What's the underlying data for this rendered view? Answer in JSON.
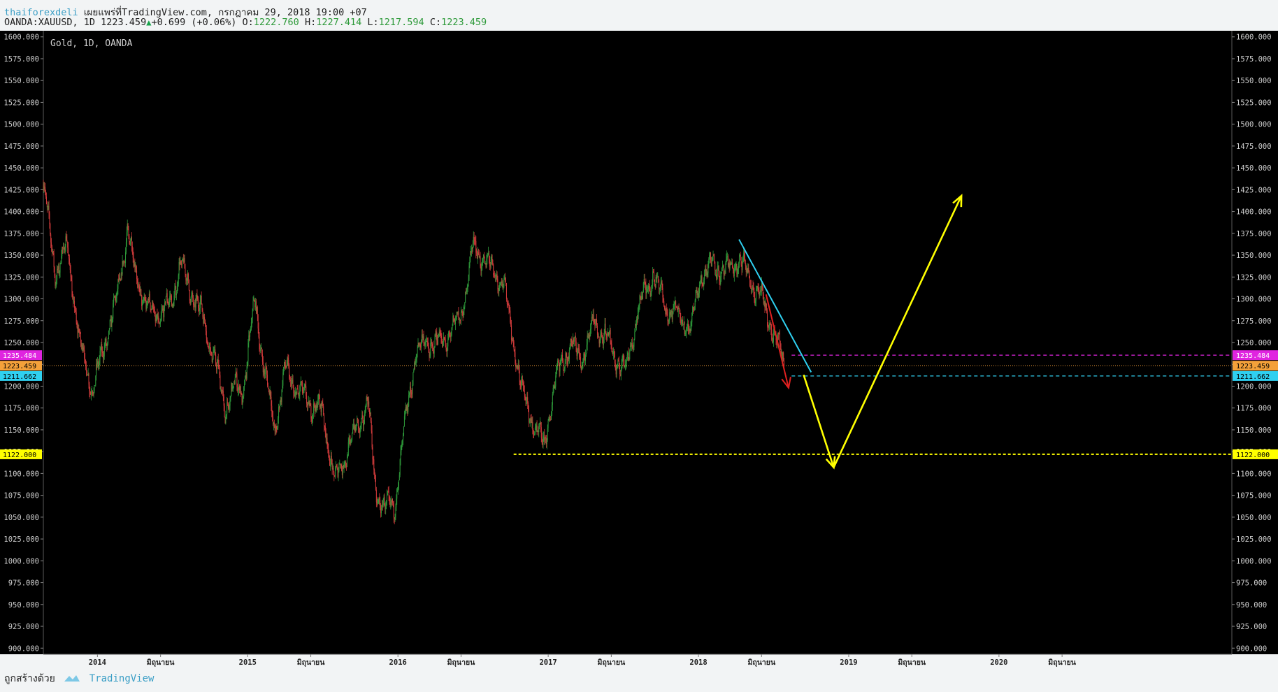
{
  "header": {
    "author": "thaiforexdeli",
    "published": "เผยแพร่ที่TradingView.com, กรกฎาคม 29, 2018 19:00 +07",
    "symbol_line": "OANDA:XAUUSD, 1D 1223.459",
    "change": "+0.699 (+0.06%)",
    "o_label": "O:",
    "o_value": "1222.760",
    "h_label": "H:",
    "h_value": "1227.414",
    "l_label": "L:",
    "l_value": "1217.594",
    "c_label": "C:",
    "c_value": "1223.459"
  },
  "chart_title": "Gold, 1D, OANDA",
  "footer": {
    "created_with": "ถูกสร้างด้วย",
    "brand": "TradingView"
  },
  "colors": {
    "background": "#000000",
    "page": "#f2f4f5",
    "up_candle": "#2e9a3a",
    "down_candle": "#d23b3b",
    "cyan_line": "#2fd0f0",
    "magenta_level": "#e024e0",
    "orange_price": "#f4a13a",
    "yellow_level": "#ffff00",
    "forecast_arrow": "#ffff00",
    "red_arrow": "#e02020"
  },
  "chart_data": {
    "type": "candlestick",
    "title": "Gold, 1D, OANDA",
    "x": [
      "2014",
      "มิถุนายน",
      "2015",
      "มิถุนายน",
      "2016",
      "มิถุนายน",
      "2017",
      "มิถุนายน",
      "2018",
      "มิถุนายน",
      "2019",
      "มิถุนายน",
      "2020",
      "มิถุนายน"
    ],
    "x_ticks": [
      {
        "label": "2014",
        "t": 2014.0
      },
      {
        "label": "มิถุนายน",
        "t": 2014.42
      },
      {
        "label": "2015",
        "t": 2015.0
      },
      {
        "label": "มิถุนายน",
        "t": 2015.42
      },
      {
        "label": "2016",
        "t": 2016.0
      },
      {
        "label": "มิถุนายน",
        "t": 2016.42
      },
      {
        "label": "2017",
        "t": 2017.0
      },
      {
        "label": "มิถุนายน",
        "t": 2017.42
      },
      {
        "label": "2018",
        "t": 2018.0
      },
      {
        "label": "มิถุนายน",
        "t": 2018.42
      },
      {
        "label": "2019",
        "t": 2019.0
      },
      {
        "label": "มิถุนายน",
        "t": 2019.42
      },
      {
        "label": "2020",
        "t": 2020.0
      },
      {
        "label": "มิถุนายน",
        "t": 2020.42
      }
    ],
    "xlim": [
      2013.64,
      2021.55
    ],
    "ylim": [
      893,
      1607
    ],
    "y_ticks": [
      900,
      925,
      950,
      975,
      1000,
      1025,
      1050,
      1075,
      1100,
      1125,
      1150,
      1175,
      1200,
      1225,
      1250,
      1275,
      1300,
      1325,
      1350,
      1375,
      1400,
      1425,
      1450,
      1475,
      1500,
      1525,
      1550,
      1575,
      1600
    ],
    "y_tick_labels": [
      "900.000",
      "925.000",
      "950.000",
      "975.000",
      "1000.000",
      "1025.000",
      "1050.000",
      "1075.000",
      "1100.000",
      "1125.000",
      "1150.000",
      "1175.000",
      "1200.000",
      "1225.000",
      "1250.000",
      "1275.000",
      "1300.000",
      "1325.000",
      "1350.000",
      "1375.000",
      "1400.000",
      "1425.000",
      "1450.000",
      "1475.000",
      "1500.000",
      "1525.000",
      "1550.000",
      "1575.000",
      "1600.000"
    ],
    "price_path": [
      [
        2013.64,
        1430
      ],
      [
        2013.72,
        1330
      ],
      [
        2013.8,
        1360
      ],
      [
        2013.88,
        1250
      ],
      [
        2013.97,
        1195
      ],
      [
        2014.05,
        1250
      ],
      [
        2014.13,
        1300
      ],
      [
        2014.2,
        1380
      ],
      [
        2014.25,
        1330
      ],
      [
        2014.33,
        1290
      ],
      [
        2014.42,
        1280
      ],
      [
        2014.5,
        1300
      ],
      [
        2014.55,
        1340
      ],
      [
        2014.62,
        1310
      ],
      [
        2014.7,
        1280
      ],
      [
        2014.78,
        1230
      ],
      [
        2014.85,
        1175
      ],
      [
        2014.92,
        1200
      ],
      [
        2014.97,
        1195
      ],
      [
        2015.05,
        1300
      ],
      [
        2015.1,
        1230
      ],
      [
        2015.18,
        1150
      ],
      [
        2015.25,
        1220
      ],
      [
        2015.33,
        1195
      ],
      [
        2015.42,
        1180
      ],
      [
        2015.5,
        1170
      ],
      [
        2015.58,
        1090
      ],
      [
        2015.67,
        1130
      ],
      [
        2015.75,
        1160
      ],
      [
        2015.8,
        1185
      ],
      [
        2015.85,
        1080
      ],
      [
        2015.92,
        1060
      ],
      [
        2015.98,
        1065
      ],
      [
        2016.05,
        1160
      ],
      [
        2016.12,
        1240
      ],
      [
        2016.2,
        1250
      ],
      [
        2016.3,
        1250
      ],
      [
        2016.42,
        1280
      ],
      [
        2016.5,
        1360
      ],
      [
        2016.6,
        1340
      ],
      [
        2016.7,
        1320
      ],
      [
        2016.76,
        1260
      ],
      [
        2016.83,
        1190
      ],
      [
        2016.92,
        1150
      ],
      [
        2016.97,
        1130
      ],
      [
        2017.05,
        1210
      ],
      [
        2017.15,
        1250
      ],
      [
        2017.22,
        1230
      ],
      [
        2017.3,
        1270
      ],
      [
        2017.38,
        1260
      ],
      [
        2017.45,
        1230
      ],
      [
        2017.52,
        1220
      ],
      [
        2017.6,
        1290
      ],
      [
        2017.7,
        1330
      ],
      [
        2017.78,
        1290
      ],
      [
        2017.88,
        1280
      ],
      [
        2017.95,
        1265
      ],
      [
        2018.02,
        1330
      ],
      [
        2018.1,
        1340
      ],
      [
        2018.18,
        1330
      ],
      [
        2018.27,
        1345
      ],
      [
        2018.35,
        1320
      ],
      [
        2018.42,
        1300
      ],
      [
        2018.48,
        1270
      ],
      [
        2018.53,
        1250
      ],
      [
        2018.57,
        1223
      ]
    ],
    "annotations": {
      "horizontal_levels": [
        {
          "label": "1235.484",
          "value": 1235.484,
          "color": "#e024e0"
        },
        {
          "label": "1223.459",
          "value": 1223.459,
          "color": "#f4a13a"
        },
        {
          "label": "1211.662",
          "value": 1211.662,
          "color": "#2fd0f0"
        },
        {
          "label": "1122.000",
          "value": 1122.0,
          "color": "#ffff00"
        }
      ],
      "cyan_trendline": [
        [
          2018.27,
          1368
        ],
        [
          2018.75,
          1216
        ]
      ],
      "red_arrow": [
        [
          2018.45,
          1305
        ],
        [
          2018.6,
          1198
        ]
      ],
      "forecast_path": [
        [
          2018.7,
          1213
        ],
        [
          2018.9,
          1107
        ],
        [
          2019.75,
          1418
        ]
      ]
    }
  }
}
